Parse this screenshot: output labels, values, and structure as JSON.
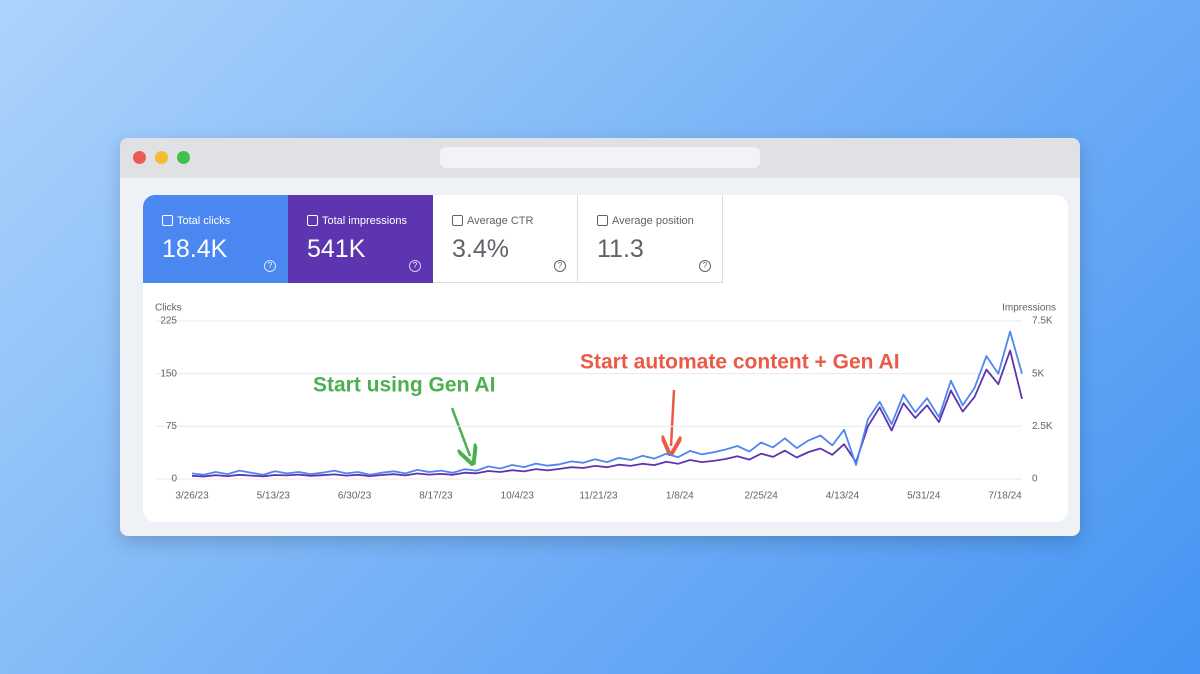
{
  "metrics": [
    {
      "label": "Total clicks",
      "value": "18.4K"
    },
    {
      "label": "Total impressions",
      "value": "541K"
    },
    {
      "label": "Average CTR",
      "value": "3.4%"
    },
    {
      "label": "Average position",
      "value": "11.3"
    }
  ],
  "chart_data": {
    "type": "line",
    "y_label": "Clicks",
    "y2_label": "Impressions",
    "x": [
      "2023-03-26",
      "2023-04-02",
      "2023-04-09",
      "2023-04-16",
      "2023-04-23",
      "2023-04-30",
      "2023-05-07",
      "2023-05-14",
      "2023-05-21",
      "2023-05-28",
      "2023-06-04",
      "2023-06-11",
      "2023-06-18",
      "2023-06-25",
      "2023-07-02",
      "2023-07-09",
      "2023-07-16",
      "2023-07-23",
      "2023-07-30",
      "2023-08-06",
      "2023-08-13",
      "2023-08-20",
      "2023-08-27",
      "2023-09-03",
      "2023-09-10",
      "2023-09-17",
      "2023-09-24",
      "2023-10-01",
      "2023-10-08",
      "2023-10-15",
      "2023-10-22",
      "2023-10-29",
      "2023-11-05",
      "2023-11-12",
      "2023-11-19",
      "2023-11-26",
      "2023-12-03",
      "2023-12-10",
      "2023-12-17",
      "2023-12-24",
      "2023-12-31",
      "2024-01-07",
      "2024-01-14",
      "2024-01-21",
      "2024-01-28",
      "2024-02-04",
      "2024-02-11",
      "2024-02-18",
      "2024-02-25",
      "2024-03-03",
      "2024-03-10",
      "2024-03-17",
      "2024-03-24",
      "2024-03-31",
      "2024-04-07",
      "2024-04-14",
      "2024-04-21",
      "2024-04-28",
      "2024-05-05",
      "2024-05-12",
      "2024-05-19",
      "2024-05-26",
      "2024-06-02",
      "2024-06-09",
      "2024-06-16",
      "2024-06-23",
      "2024-06-30",
      "2024-07-07",
      "2024-07-14",
      "2024-07-21",
      "2024-07-28"
    ],
    "xlim": [
      "2023-03-26",
      "2024-07-28"
    ],
    "xticks": [
      {
        "value": "2023-03-26",
        "label": "3/26/23"
      },
      {
        "value": "2023-05-13",
        "label": "5/13/23"
      },
      {
        "value": "2023-06-30",
        "label": "6/30/23"
      },
      {
        "value": "2023-08-17",
        "label": "8/17/23"
      },
      {
        "value": "2023-10-04",
        "label": "10/4/23"
      },
      {
        "value": "2023-11-21",
        "label": "11/21/23"
      },
      {
        "value": "2024-01-08",
        "label": "1/8/24"
      },
      {
        "value": "2024-02-25",
        "label": "2/25/24"
      },
      {
        "value": "2024-04-13",
        "label": "4/13/24"
      },
      {
        "value": "2024-05-31",
        "label": "5/31/24"
      },
      {
        "value": "2024-07-18",
        "label": "7/18/24"
      }
    ],
    "ylim": [
      0,
      225
    ],
    "yticks": [
      0,
      75,
      150,
      225
    ],
    "y2lim": [
      0,
      7500
    ],
    "y2ticks": [
      0,
      {
        "value": 2500,
        "label": "2.5K"
      },
      {
        "value": 5000,
        "label": "5K"
      },
      {
        "value": 7500,
        "label": "7.5K"
      }
    ],
    "grid": true,
    "series": [
      {
        "name": "Impressions",
        "color": "#5e35b1",
        "axis": "y2",
        "values": [
          150,
          120,
          180,
          140,
          200,
          160,
          130,
          190,
          170,
          210,
          150,
          180,
          220,
          160,
          200,
          140,
          190,
          230,
          170,
          260,
          210,
          240,
          200,
          300,
          270,
          380,
          330,
          420,
          360,
          470,
          410,
          480,
          560,
          520,
          620,
          560,
          680,
          620,
          720,
          660,
          820,
          720,
          900,
          800,
          860,
          950,
          1080,
          920,
          1200,
          1050,
          1350,
          1020,
          1280,
          1450,
          1150,
          1650,
          800,
          2500,
          3400,
          2300,
          3600,
          2900,
          3500,
          2700,
          4200,
          3200,
          3900,
          5200,
          4500,
          6100,
          3800
        ]
      },
      {
        "name": "Clicks",
        "color": "#4f86f0",
        "values": [
          8,
          6,
          10,
          7,
          12,
          9,
          6,
          11,
          8,
          10,
          7,
          9,
          12,
          8,
          10,
          6,
          9,
          11,
          8,
          13,
          10,
          12,
          9,
          14,
          12,
          18,
          15,
          20,
          17,
          22,
          19,
          21,
          25,
          23,
          28,
          24,
          30,
          27,
          33,
          29,
          36,
          31,
          40,
          35,
          38,
          42,
          47,
          39,
          52,
          45,
          58,
          44,
          55,
          62,
          48,
          70,
          20,
          85,
          110,
          78,
          120,
          95,
          115,
          88,
          140,
          105,
          130,
          175,
          150,
          210,
          150
        ]
      }
    ],
    "annotations": [
      {
        "text": "Start using Gen AI",
        "color": "#4caf50"
      },
      {
        "text": "Start automate content + Gen AI",
        "color": "#ea5a47"
      }
    ]
  }
}
